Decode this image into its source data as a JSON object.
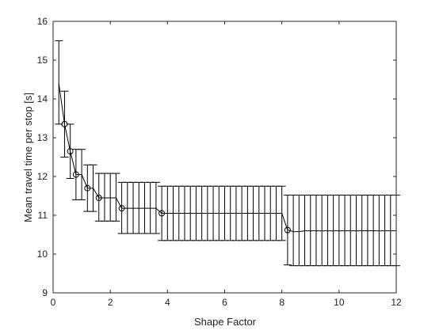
{
  "chart_data": {
    "type": "line",
    "title": "",
    "xlabel": "Shape Factor",
    "ylabel": "Mean travel time per stop [s]",
    "xlim": [
      0,
      12
    ],
    "ylim": [
      9,
      16
    ],
    "xticks": [
      "0",
      "2",
      "4",
      "6",
      "8",
      "10",
      "12"
    ],
    "yticks": [
      "9",
      "10",
      "11",
      "12",
      "13",
      "14",
      "15",
      "16"
    ],
    "grid": false,
    "legend": "none",
    "line_color": "#000000",
    "series": [
      {
        "x": [
          0.2,
          0.4,
          0.6,
          0.8,
          1.0,
          1.2,
          1.4,
          1.6,
          1.8,
          2.0,
          2.2,
          2.4,
          2.6,
          2.8,
          3.0,
          3.2,
          3.4,
          3.6,
          3.8,
          4.0,
          4.2,
          4.4,
          4.6,
          4.8,
          5.0,
          5.2,
          5.4,
          5.6,
          5.8,
          6.0,
          6.2,
          6.4,
          6.6,
          6.8,
          7.0,
          7.2,
          7.4,
          7.6,
          7.8,
          8.0,
          8.2,
          8.4,
          8.6,
          8.8,
          9.0,
          9.2,
          9.4,
          9.6,
          9.8,
          10.0,
          10.2,
          10.4,
          10.6,
          10.8,
          11.0,
          11.2,
          11.4,
          11.6,
          11.8,
          12.0
        ],
        "y": [
          14.4,
          13.35,
          12.65,
          12.05,
          12.05,
          11.7,
          11.7,
          11.45,
          11.45,
          11.45,
          11.45,
          11.18,
          11.18,
          11.18,
          11.18,
          11.18,
          11.18,
          11.18,
          11.05,
          11.05,
          11.05,
          11.05,
          11.05,
          11.05,
          11.05,
          11.05,
          11.05,
          11.05,
          11.05,
          11.05,
          11.05,
          11.05,
          11.05,
          11.05,
          11.05,
          11.05,
          11.05,
          11.05,
          11.05,
          11.05,
          10.62,
          10.58,
          10.58,
          10.6,
          10.6,
          10.6,
          10.6,
          10.6,
          10.6,
          10.6,
          10.6,
          10.6,
          10.6,
          10.6,
          10.6,
          10.6,
          10.6,
          10.6,
          10.6,
          10.6
        ],
        "y_upper": [
          15.5,
          14.2,
          13.35,
          12.7,
          12.7,
          12.3,
          12.3,
          12.08,
          12.08,
          12.08,
          12.08,
          11.85,
          11.85,
          11.85,
          11.85,
          11.85,
          11.85,
          11.85,
          11.75,
          11.75,
          11.75,
          11.75,
          11.75,
          11.75,
          11.75,
          11.75,
          11.75,
          11.75,
          11.75,
          11.75,
          11.75,
          11.75,
          11.75,
          11.75,
          11.75,
          11.75,
          11.75,
          11.75,
          11.75,
          11.75,
          11.52,
          11.52,
          11.52,
          11.52,
          11.52,
          11.52,
          11.52,
          11.52,
          11.52,
          11.52,
          11.52,
          11.52,
          11.52,
          11.52,
          11.52,
          11.52,
          11.52,
          11.52,
          11.52,
          11.52
        ],
        "y_lower": [
          13.35,
          12.5,
          11.95,
          11.4,
          11.4,
          11.1,
          11.1,
          10.85,
          10.85,
          10.85,
          10.85,
          10.53,
          10.53,
          10.53,
          10.53,
          10.53,
          10.53,
          10.53,
          10.35,
          10.35,
          10.35,
          10.35,
          10.35,
          10.35,
          10.35,
          10.35,
          10.35,
          10.35,
          10.35,
          10.35,
          10.35,
          10.35,
          10.35,
          10.35,
          10.35,
          10.35,
          10.35,
          10.35,
          10.35,
          10.35,
          9.72,
          9.7,
          9.7,
          9.7,
          9.7,
          9.7,
          9.7,
          9.7,
          9.7,
          9.7,
          9.7,
          9.7,
          9.7,
          9.7,
          9.7,
          9.7,
          9.7,
          9.7,
          9.7,
          9.7
        ],
        "markers_at_x": [
          0.4,
          0.6,
          0.8,
          1.2,
          1.6,
          2.4,
          3.8,
          8.2
        ]
      }
    ]
  }
}
